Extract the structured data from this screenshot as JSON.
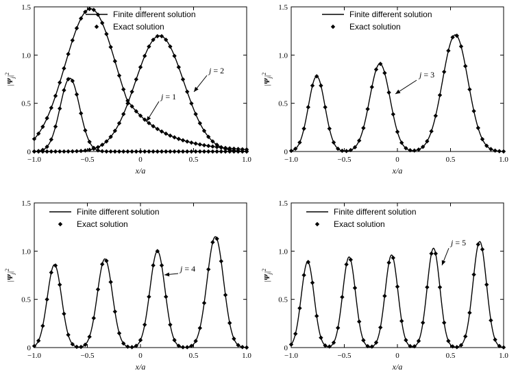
{
  "chart_data": [
    {
      "type": "line",
      "xlabel": "x/a",
      "ylabel": "|Ψj|²",
      "ylabel_parts": {
        "base": "Ψ",
        "sub": "j",
        "sup": "2"
      },
      "xlim": [
        -1.0,
        1.0
      ],
      "ylim": [
        0,
        1.5
      ],
      "xticks": [
        "-1.0",
        "-0.5",
        "0",
        "0.5",
        "1.0"
      ],
      "yticks": [
        "0",
        "0.5",
        "1.0",
        "1.5"
      ],
      "legend": [
        "Finite different solution",
        "Exact solution"
      ],
      "legend_position": "top-right",
      "annotations": [
        {
          "var": "j",
          "text": " = 1",
          "j": 1
        },
        {
          "var": "j",
          "text": " = 2",
          "j": 2
        }
      ],
      "series": [
        {
          "j": 1,
          "amplitude": 0.76
        },
        {
          "j": 2,
          "amplitude": 1.48
        }
      ]
    },
    {
      "type": "line",
      "xlabel": "x/a",
      "ylabel": "|Ψj|²",
      "ylabel_parts": {
        "base": "Ψ",
        "sub": "j",
        "sup": "2"
      },
      "xlim": [
        -1.0,
        1.0
      ],
      "ylim": [
        0,
        1.5
      ],
      "xticks": [
        "-1.0",
        "-0.5",
        "0",
        "0.5",
        "1.0"
      ],
      "yticks": [
        "0",
        "0.5",
        "1.0",
        "1.5"
      ],
      "legend": [
        "Finite different solution",
        "Exact solution"
      ],
      "legend_position": "top-center",
      "annotations": [
        {
          "var": "j",
          "text": " = 3",
          "j": 3
        }
      ],
      "series": [
        {
          "j": 3,
          "amplitude": 1.21
        }
      ]
    },
    {
      "type": "line",
      "xlabel": "x/a",
      "ylabel": "|Ψj|²",
      "ylabel_parts": {
        "base": "Ψ",
        "sub": "j",
        "sup": "2"
      },
      "xlim": [
        -1.0,
        1.0
      ],
      "ylim": [
        0,
        1.5
      ],
      "xticks": [
        "-1.0",
        "-0.5",
        "0",
        "0.5",
        "1.0"
      ],
      "yticks": [
        "0",
        "0.5",
        "1.0",
        "1.5"
      ],
      "legend": [
        "Finite different solution",
        "Exact solution"
      ],
      "legend_position": "top-left",
      "annotations": [
        {
          "var": "j",
          "text": " = 4",
          "j": 4
        }
      ],
      "series": [
        {
          "j": 4,
          "amplitude": 1.15
        }
      ]
    },
    {
      "type": "line",
      "xlabel": "x/a",
      "ylabel": "|Ψj|²",
      "ylabel_parts": {
        "base": "Ψ",
        "sub": "j",
        "sup": "2"
      },
      "xlim": [
        -1.0,
        1.0
      ],
      "ylim": [
        0,
        1.5
      ],
      "xticks": [
        "-1.0",
        "-0.5",
        "0",
        "0.5",
        "1.0"
      ],
      "yticks": [
        "0",
        "0.5",
        "1.0",
        "1.5"
      ],
      "legend": [
        "Finite different solution",
        "Exact solution"
      ],
      "legend_position": "top-left",
      "annotations": [
        {
          "var": "j",
          "text": " = 5",
          "j": 5
        }
      ],
      "series": [
        {
          "j": 5,
          "amplitude": 1.1
        }
      ]
    }
  ]
}
